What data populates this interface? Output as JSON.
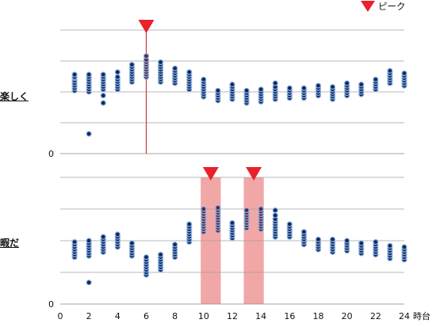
{
  "legend": {
    "label": "ピーク",
    "marker": "peak-triangle",
    "color": "#e8212b"
  },
  "x_axis": {
    "ticks": [
      "0",
      "2",
      "4",
      "6",
      "8",
      "10",
      "12",
      "14",
      "16",
      "18",
      "20",
      "22",
      "24"
    ],
    "unit": "時台",
    "range": [
      0,
      24
    ]
  },
  "colors": {
    "dot_dark": "#0f2a66",
    "dot_light": "#8fb3df",
    "peak_dot": "#5a2a4a",
    "peak_line": "#c23b3b",
    "peak_band": "#f2a7a7",
    "grid": "#a0a0a0"
  },
  "chart_data": [
    {
      "type": "scatter",
      "title": "",
      "ylabel": "楽しく",
      "xlabel": "時台",
      "y_tick_labels": [
        "0"
      ],
      "grid": true,
      "peak_hours": [
        6
      ],
      "peak_style": "line",
      "series": [
        {
          "hour": 1,
          "values": [
            0.51,
            0.53,
            0.55,
            0.57,
            0.59,
            0.61,
            0.62,
            0.64
          ]
        },
        {
          "hour": 2,
          "values": [
            0.16,
            0.5,
            0.52,
            0.54,
            0.56,
            0.58,
            0.6,
            0.62,
            0.64
          ]
        },
        {
          "hour": 3,
          "values": [
            0.41,
            0.47,
            0.52,
            0.54,
            0.56,
            0.58,
            0.6,
            0.62,
            0.64
          ]
        },
        {
          "hour": 4,
          "values": [
            0.52,
            0.54,
            0.56,
            0.58,
            0.6,
            0.62,
            0.66
          ]
        },
        {
          "hour": 5,
          "values": [
            0.58,
            0.6,
            0.62,
            0.64,
            0.66,
            0.68,
            0.7,
            0.72
          ]
        },
        {
          "hour": 6,
          "values": [
            0.62,
            0.64,
            0.66,
            0.68,
            0.7,
            0.72,
            0.74,
            0.76,
            0.79
          ]
        },
        {
          "hour": 7,
          "values": [
            0.58,
            0.6,
            0.62,
            0.64,
            0.66,
            0.68,
            0.7,
            0.72,
            0.74
          ]
        },
        {
          "hour": 8,
          "values": [
            0.57,
            0.59,
            0.61,
            0.63,
            0.65,
            0.67,
            0.69
          ]
        },
        {
          "hour": 9,
          "values": [
            0.52,
            0.54,
            0.56,
            0.58,
            0.6,
            0.62,
            0.64,
            0.66
          ]
        },
        {
          "hour": 10,
          "values": [
            0.46,
            0.48,
            0.5,
            0.52,
            0.54,
            0.56,
            0.58,
            0.6
          ]
        },
        {
          "hour": 11,
          "values": [
            0.43,
            0.45,
            0.47,
            0.49,
            0.51
          ]
        },
        {
          "hour": 12,
          "values": [
            0.44,
            0.46,
            0.48,
            0.5,
            0.52,
            0.54,
            0.56
          ]
        },
        {
          "hour": 13,
          "values": [
            0.41,
            0.43,
            0.45,
            0.47,
            0.49,
            0.51
          ]
        },
        {
          "hour": 14,
          "values": [
            0.42,
            0.44,
            0.46,
            0.48,
            0.5,
            0.52
          ]
        },
        {
          "hour": 15,
          "values": [
            0.44,
            0.46,
            0.48,
            0.5,
            0.52,
            0.54,
            0.57
          ]
        },
        {
          "hour": 16,
          "values": [
            0.45,
            0.47,
            0.49,
            0.51,
            0.53
          ]
        },
        {
          "hour": 17,
          "values": [
            0.45,
            0.47,
            0.49,
            0.51,
            0.53
          ]
        },
        {
          "hour": 18,
          "values": [
            0.47,
            0.49,
            0.51,
            0.53,
            0.55
          ]
        },
        {
          "hour": 19,
          "values": [
            0.44,
            0.46,
            0.48,
            0.5,
            0.52,
            0.54
          ]
        },
        {
          "hour": 20,
          "values": [
            0.47,
            0.49,
            0.51,
            0.53,
            0.55,
            0.57
          ]
        },
        {
          "hour": 21,
          "values": [
            0.48,
            0.5,
            0.52,
            0.54,
            0.56
          ]
        },
        {
          "hour": 22,
          "values": [
            0.52,
            0.54,
            0.56,
            0.58,
            0.6
          ]
        },
        {
          "hour": 23,
          "values": [
            0.57,
            0.59,
            0.61,
            0.63,
            0.65,
            0.67
          ]
        },
        {
          "hour": 24,
          "values": [
            0.55,
            0.57,
            0.59,
            0.61,
            0.63,
            0.65
          ]
        }
      ]
    },
    {
      "type": "scatter",
      "title": "",
      "ylabel": "暇だ",
      "xlabel": "時台",
      "y_tick_labels": [
        "0"
      ],
      "grid": true,
      "peak_hours": [
        10.5,
        13.5
      ],
      "peak_style": "band",
      "peak_band_ranges": [
        [
          9.8,
          11.2
        ],
        [
          12.8,
          14.2
        ]
      ],
      "series": [
        {
          "hour": 1,
          "values": [
            0.37,
            0.39,
            0.41,
            0.43,
            0.45,
            0.47,
            0.49
          ]
        },
        {
          "hour": 2,
          "values": [
            0.17,
            0.38,
            0.4,
            0.42,
            0.44,
            0.46,
            0.48,
            0.5
          ]
        },
        {
          "hour": 3,
          "values": [
            0.41,
            0.43,
            0.45,
            0.47,
            0.49,
            0.51,
            0.53
          ]
        },
        {
          "hour": 4,
          "values": [
            0.45,
            0.47,
            0.49,
            0.51,
            0.53,
            0.55
          ]
        },
        {
          "hour": 5,
          "values": [
            0.38,
            0.4,
            0.42,
            0.44,
            0.46,
            0.48
          ]
        },
        {
          "hour": 6,
          "values": [
            0.23,
            0.25,
            0.27,
            0.29,
            0.31,
            0.33,
            0.35,
            0.37
          ]
        },
        {
          "hour": 7,
          "values": [
            0.27,
            0.29,
            0.31,
            0.33,
            0.35,
            0.37,
            0.39
          ]
        },
        {
          "hour": 8,
          "values": [
            0.37,
            0.39,
            0.41,
            0.43,
            0.45,
            0.47
          ]
        },
        {
          "hour": 9,
          "values": [
            0.49,
            0.51,
            0.53,
            0.55,
            0.57,
            0.59,
            0.61,
            0.63
          ]
        },
        {
          "hour": 10,
          "values": [
            0.57,
            0.59,
            0.61,
            0.63,
            0.65,
            0.67,
            0.69,
            0.71,
            0.73,
            0.75
          ]
        },
        {
          "hour": 11,
          "values": [
            0.58,
            0.6,
            0.62,
            0.64,
            0.66,
            0.68,
            0.7,
            0.72,
            0.74,
            0.76
          ]
        },
        {
          "hour": 12,
          "values": [
            0.52,
            0.54,
            0.56,
            0.58,
            0.6,
            0.62,
            0.64
          ]
        },
        {
          "hour": 13,
          "values": [
            0.6,
            0.62,
            0.64,
            0.66,
            0.68,
            0.7,
            0.72,
            0.74
          ]
        },
        {
          "hour": 14,
          "values": [
            0.59,
            0.61,
            0.63,
            0.65,
            0.67,
            0.69,
            0.71,
            0.73,
            0.75
          ]
        },
        {
          "hour": 15,
          "values": [
            0.53,
            0.55,
            0.57,
            0.59,
            0.61,
            0.63,
            0.65,
            0.67,
            0.7,
            0.74
          ]
        },
        {
          "hour": 16,
          "values": [
            0.53,
            0.55,
            0.57,
            0.59,
            0.61,
            0.63
          ]
        },
        {
          "hour": 17,
          "values": [
            0.47,
            0.49,
            0.51,
            0.53,
            0.55,
            0.57
          ]
        },
        {
          "hour": 18,
          "values": [
            0.43,
            0.45,
            0.47,
            0.49,
            0.51
          ]
        },
        {
          "hour": 19,
          "values": [
            0.41,
            0.43,
            0.45,
            0.47,
            0.49,
            0.51
          ]
        },
        {
          "hour": 20,
          "values": [
            0.42,
            0.44,
            0.46,
            0.48,
            0.5
          ]
        },
        {
          "hour": 21,
          "values": [
            0.4,
            0.42,
            0.44,
            0.46,
            0.48
          ]
        },
        {
          "hour": 22,
          "values": [
            0.39,
            0.41,
            0.43,
            0.45,
            0.47,
            0.49
          ]
        },
        {
          "hour": 23,
          "values": [
            0.36,
            0.38,
            0.4,
            0.42,
            0.44,
            0.46
          ]
        },
        {
          "hour": 24,
          "values": [
            0.35,
            0.37,
            0.39,
            0.41,
            0.43,
            0.45
          ]
        }
      ]
    }
  ]
}
